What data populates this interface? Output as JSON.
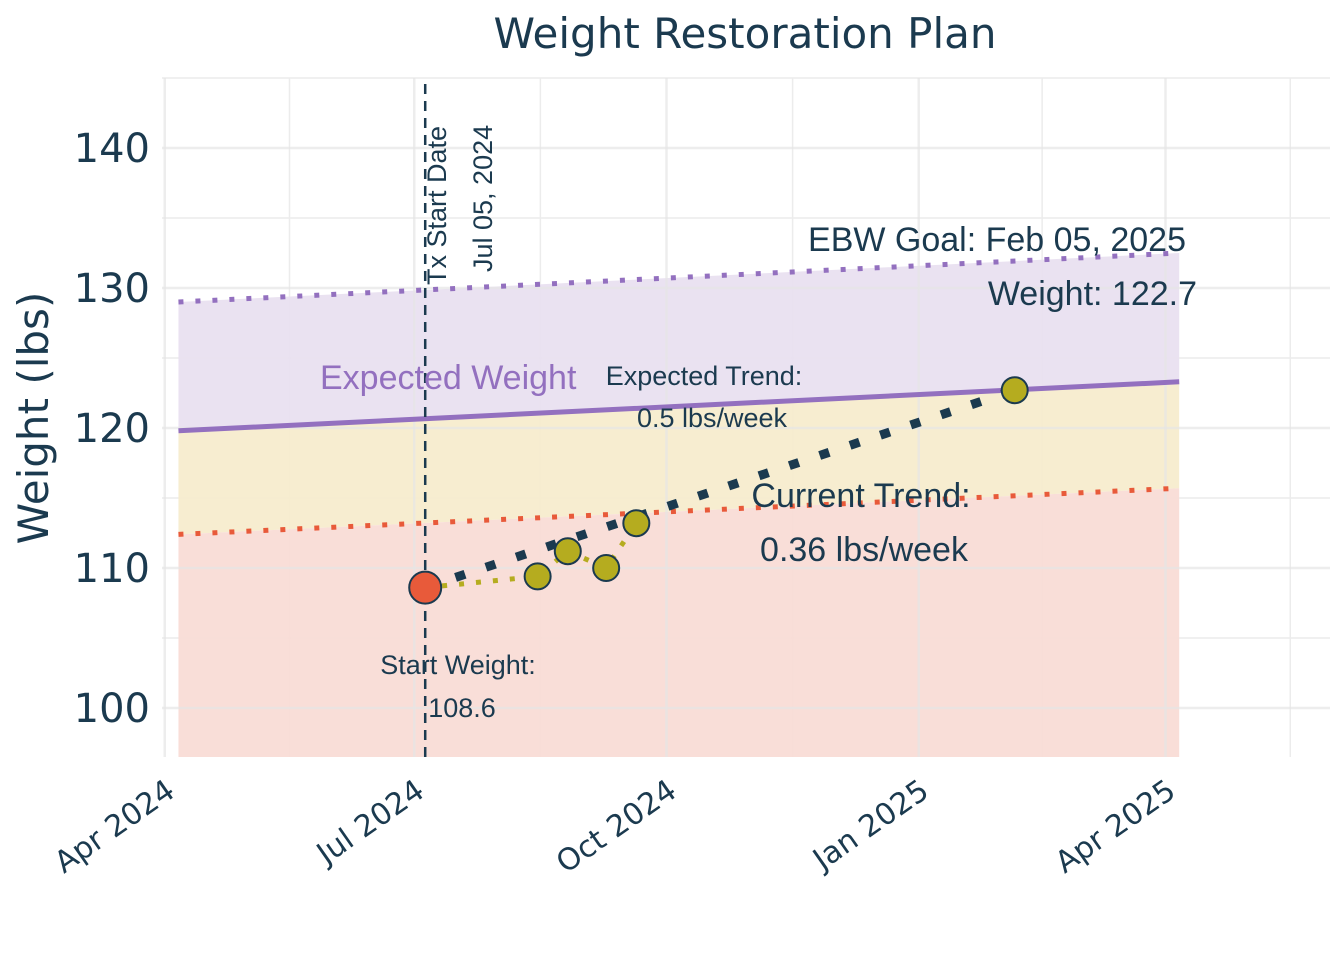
{
  "chart_data": {
    "type": "line",
    "title": "Weight Restoration Plan",
    "xlabel": "",
    "ylabel": "Weight (lbs)",
    "xlim": [
      "2024-03-31",
      "2025-05-31"
    ],
    "ylim": [
      96.5,
      145
    ],
    "y_ticks": [
      100,
      110,
      120,
      130,
      140
    ],
    "x_ticks": [
      {
        "date": "2024-04-01",
        "label": "Apr 2024"
      },
      {
        "date": "2024-07-01",
        "label": "Jul 2024"
      },
      {
        "date": "2024-10-01",
        "label": "Oct 2024"
      },
      {
        "date": "2025-01-01",
        "label": "Jan 2025"
      },
      {
        "date": "2025-04-01",
        "label": "Apr 2025"
      }
    ],
    "grid": true,
    "bands": [
      {
        "name": "upper",
        "color": "#e8dff0",
        "lower": [
          [
            "2024-04-06",
            119.8
          ],
          [
            "2025-04-06",
            123.3
          ]
        ],
        "upper": [
          [
            "2024-04-06",
            129
          ],
          [
            "2025-04-06",
            132.5
          ]
        ]
      },
      {
        "name": "middle",
        "color": "#f6ebcc",
        "lower": [
          [
            "2024-04-06",
            112.4
          ],
          [
            "2025-04-06",
            115.7
          ]
        ],
        "upper": [
          [
            "2024-04-06",
            119.8
          ],
          [
            "2025-04-06",
            123.3
          ]
        ]
      },
      {
        "name": "lower",
        "color": "#f9dbd5",
        "lower": [
          [
            "2024-04-06",
            96.5
          ],
          [
            "2025-04-06",
            96.5
          ]
        ],
        "upper": [
          [
            "2024-04-06",
            112.4
          ],
          [
            "2025-04-06",
            115.7
          ]
        ]
      }
    ],
    "series": [
      {
        "name": "Expected Weight",
        "style": "solid",
        "color": "#9370bf",
        "points": [
          [
            "2024-04-06",
            119.8
          ],
          [
            "2025-04-06",
            123.3
          ]
        ]
      },
      {
        "style": "dotted",
        "color": "#9370bf",
        "points": [
          [
            "2024-04-06",
            129
          ],
          [
            "2025-04-06",
            132.5
          ]
        ]
      },
      {
        "style": "dotted",
        "color": "#e85a3a",
        "points": [
          [
            "2024-04-06",
            112.4
          ],
          [
            "2025-04-06",
            115.7
          ]
        ]
      },
      {
        "name": "Current Trend",
        "style": "dotted-thick",
        "color": "#1b3a4f",
        "points": [
          [
            "2024-07-05",
            108.6
          ],
          [
            "2025-02-05",
            122.7
          ]
        ]
      },
      {
        "style": "dotted",
        "color": "#b5ac1f",
        "points": [
          [
            "2024-07-05",
            108.6
          ],
          [
            "2024-08-15",
            109.4
          ],
          [
            "2024-08-26",
            111.2
          ],
          [
            "2024-09-09",
            110.0
          ],
          [
            "2024-09-20",
            113.2
          ]
        ]
      }
    ],
    "points": [
      {
        "date": "2024-07-05",
        "weight": 108.6,
        "color": "#e85a3a"
      },
      {
        "date": "2024-08-15",
        "weight": 109.4,
        "color": "#b5ac1f"
      },
      {
        "date": "2024-08-26",
        "weight": 111.2,
        "color": "#b5ac1f"
      },
      {
        "date": "2024-09-09",
        "weight": 110.0,
        "color": "#b5ac1f"
      },
      {
        "date": "2024-09-20",
        "weight": 113.2,
        "color": "#b5ac1f"
      },
      {
        "date": "2025-02-05",
        "weight": 122.7,
        "color": "#b5ac1f"
      }
    ],
    "vline": {
      "date": "2024-07-05",
      "label1": "Tx Start Date",
      "label2": "Jul 05, 2024"
    },
    "annotations": {
      "expected_weight": "Expected Weight",
      "expected_trend_1": "Expected Trend:",
      "expected_trend_2": "0.5 lbs/week",
      "current_trend_1": "Current Trend:",
      "current_trend_2": "0.36 lbs/week",
      "start_weight_1": "Start Weight:",
      "start_weight_2": "108.6",
      "goal_1": "EBW Goal: Feb 05, 2025",
      "goal_2": "Weight: 122.7"
    },
    "colors": {
      "text": "#1b3a4f",
      "purple": "#9370bf",
      "red": "#e85a3a",
      "olive": "#b5ac1f",
      "navy": "#1b3a4f"
    }
  }
}
